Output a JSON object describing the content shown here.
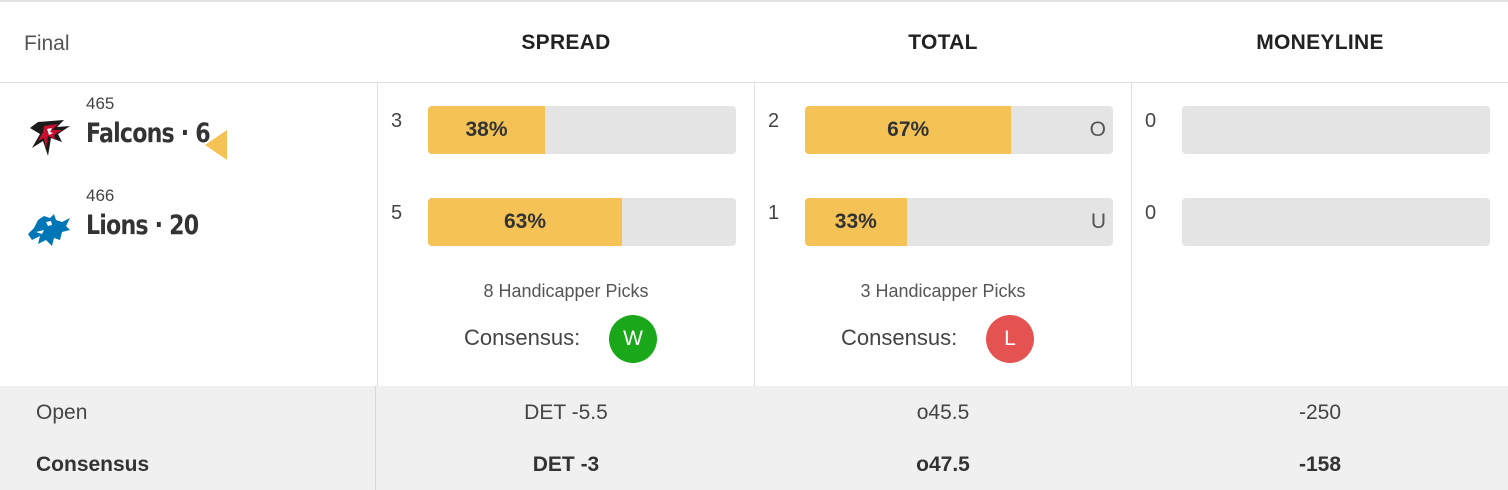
{
  "header": {
    "status": "Final",
    "columns": [
      "SPREAD",
      "TOTAL",
      "MONEYLINE"
    ]
  },
  "teams": [
    {
      "rotation": "465",
      "name": "Falcons · 6",
      "logo": "falcons-logo",
      "winner": false
    },
    {
      "rotation": "466",
      "name": "Lions · 20",
      "logo": "lions-logo",
      "winner": true
    }
  ],
  "spread": {
    "rows": [
      {
        "count": "3",
        "percent": 38,
        "label": "38%"
      },
      {
        "count": "5",
        "percent": 63,
        "label": "63%"
      }
    ],
    "picks": "8 Handicapper Picks",
    "consensus_label": "Consensus:",
    "result": "W",
    "result_color": "#1aa81a"
  },
  "total": {
    "rows": [
      {
        "count": "2",
        "percent": 67,
        "label": "67%",
        "side": "O"
      },
      {
        "count": "1",
        "percent": 33,
        "label": "33%",
        "side": "U"
      }
    ],
    "picks": "3 Handicapper Picks",
    "consensus_label": "Consensus:",
    "result": "L",
    "result_color": "#e45252"
  },
  "moneyline": {
    "rows": [
      {
        "count": "0",
        "percent": 0
      },
      {
        "count": "0",
        "percent": 0
      }
    ]
  },
  "lines": {
    "open": {
      "label": "Open",
      "spread": "DET -5.5",
      "total": "o45.5",
      "moneyline": "-250"
    },
    "consensus": {
      "label": "Consensus",
      "spread": "DET -3",
      "total": "o47.5",
      "moneyline": "-158"
    }
  },
  "colors": {
    "bar_fill": "#f4c255",
    "bar_track": "#e4e4e4"
  }
}
